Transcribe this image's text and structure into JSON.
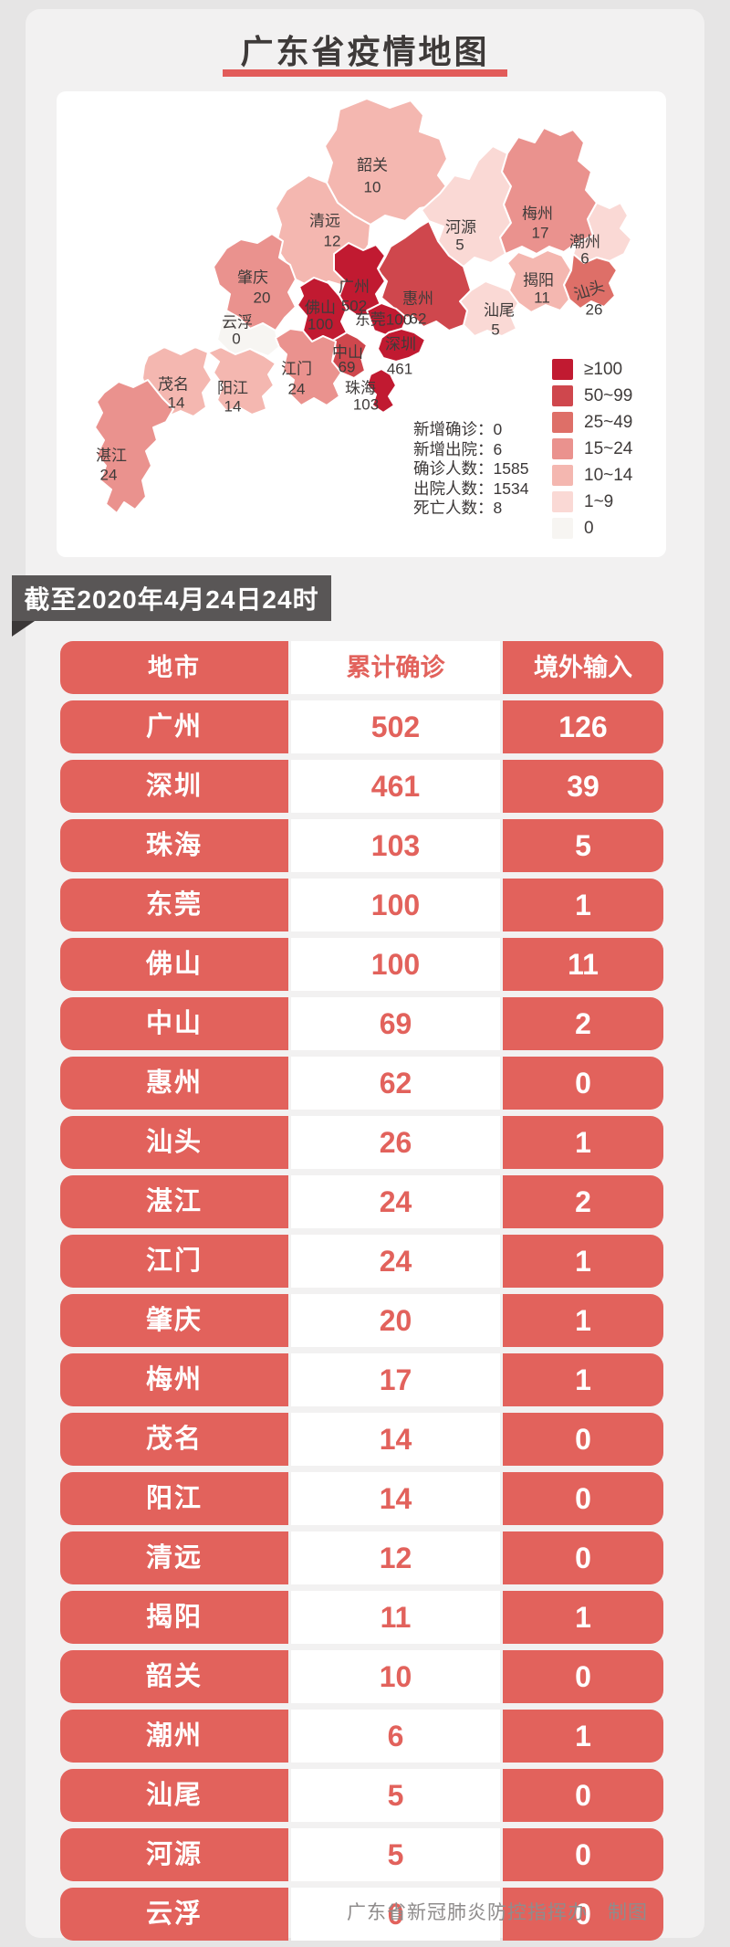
{
  "title": "广东省疫情地图",
  "as_of": "截至2020年4月24日24时",
  "footer": "广东省新冠肺炎防控指挥办　制图",
  "accent_color": "#e2625c",
  "map": {
    "legend": [
      {
        "label": "≥100",
        "color": "#c11a31"
      },
      {
        "label": "50~99",
        "color": "#cf474d"
      },
      {
        "label": "25~49",
        "color": "#de6f68"
      },
      {
        "label": "15~24",
        "color": "#ea928e"
      },
      {
        "label": "10~14",
        "color": "#f4b7b0"
      },
      {
        "label": "1~9",
        "color": "#fad9d5"
      },
      {
        "label": "0",
        "color": "#f7f5f2"
      }
    ],
    "stats": [
      {
        "label": "新增确诊",
        "value": "0"
      },
      {
        "label": "新增出院",
        "value": "6"
      },
      {
        "label": "确诊人数",
        "value": "1585"
      },
      {
        "label": "出院人数",
        "value": "1534"
      },
      {
        "label": "死亡人数",
        "value": "8"
      }
    ],
    "regions": [
      {
        "id": "shaoguan",
        "name": "韶关",
        "cases": 10
      },
      {
        "id": "qingyuan",
        "name": "清远",
        "cases": 12
      },
      {
        "id": "heyuan",
        "name": "河源",
        "cases": 5
      },
      {
        "id": "meizhou",
        "name": "梅州",
        "cases": 17
      },
      {
        "id": "chaozhou",
        "name": "潮州",
        "cases": 6
      },
      {
        "id": "jieyang",
        "name": "揭阳",
        "cases": 11
      },
      {
        "id": "shantou",
        "name": "汕头",
        "cases": 26
      },
      {
        "id": "shanwei",
        "name": "汕尾",
        "cases": 5
      },
      {
        "id": "huizhou",
        "name": "惠州",
        "cases": 62
      },
      {
        "id": "zhaoqing",
        "name": "肇庆",
        "cases": 20
      },
      {
        "id": "yunfu",
        "name": "云浮",
        "cases": 0
      },
      {
        "id": "guangzhou",
        "name": "广州",
        "cases": 502
      },
      {
        "id": "foshan",
        "name": "佛山",
        "cases": 100
      },
      {
        "id": "dongguan",
        "name": "东莞",
        "cases": 100
      },
      {
        "id": "shenzhen",
        "name": "深圳",
        "cases": 461
      },
      {
        "id": "zhongshan",
        "name": "中山",
        "cases": 69
      },
      {
        "id": "zhuhai",
        "name": "珠海",
        "cases": 103
      },
      {
        "id": "jiangmen",
        "name": "江门",
        "cases": 24
      },
      {
        "id": "maoming",
        "name": "茂名",
        "cases": 14
      },
      {
        "id": "yangjiang",
        "name": "阳江",
        "cases": 14
      },
      {
        "id": "zhanjiang",
        "name": "湛江",
        "cases": 24
      }
    ]
  },
  "table": {
    "headers": [
      "地市",
      "累计确诊",
      "境外输入"
    ],
    "rows": [
      [
        "广州",
        "502",
        "126"
      ],
      [
        "深圳",
        "461",
        "39"
      ],
      [
        "珠海",
        "103",
        "5"
      ],
      [
        "东莞",
        "100",
        "1"
      ],
      [
        "佛山",
        "100",
        "11"
      ],
      [
        "中山",
        "69",
        "2"
      ],
      [
        "惠州",
        "62",
        "0"
      ],
      [
        "汕头",
        "26",
        "1"
      ],
      [
        "湛江",
        "24",
        "2"
      ],
      [
        "江门",
        "24",
        "1"
      ],
      [
        "肇庆",
        "20",
        "1"
      ],
      [
        "梅州",
        "17",
        "1"
      ],
      [
        "茂名",
        "14",
        "0"
      ],
      [
        "阳江",
        "14",
        "0"
      ],
      [
        "清远",
        "12",
        "0"
      ],
      [
        "揭阳",
        "11",
        "1"
      ],
      [
        "韶关",
        "10",
        "0"
      ],
      [
        "潮州",
        "6",
        "1"
      ],
      [
        "汕尾",
        "5",
        "0"
      ],
      [
        "河源",
        "5",
        "0"
      ],
      [
        "云浮",
        "0",
        "0"
      ]
    ]
  },
  "chart_data": [
    {
      "type": "heatmap",
      "subtype": "choropleth-map",
      "title": "广东省疫情地图",
      "legend_bins": [
        "≥100",
        "50~99",
        "25~49",
        "15~24",
        "10~14",
        "1~9",
        "0"
      ],
      "legend_position": "right",
      "regions": [
        {
          "name": "广州",
          "cases": 502
        },
        {
          "name": "深圳",
          "cases": 461
        },
        {
          "name": "珠海",
          "cases": 103
        },
        {
          "name": "东莞",
          "cases": 100
        },
        {
          "name": "佛山",
          "cases": 100
        },
        {
          "name": "中山",
          "cases": 69
        },
        {
          "name": "惠州",
          "cases": 62
        },
        {
          "name": "汕头",
          "cases": 26
        },
        {
          "name": "湛江",
          "cases": 24
        },
        {
          "name": "江门",
          "cases": 24
        },
        {
          "name": "肇庆",
          "cases": 20
        },
        {
          "name": "梅州",
          "cases": 17
        },
        {
          "name": "茂名",
          "cases": 14
        },
        {
          "name": "阳江",
          "cases": 14
        },
        {
          "name": "清远",
          "cases": 12
        },
        {
          "name": "揭阳",
          "cases": 11
        },
        {
          "name": "韶关",
          "cases": 10
        },
        {
          "name": "潮州",
          "cases": 6
        },
        {
          "name": "汕尾",
          "cases": 5
        },
        {
          "name": "河源",
          "cases": 5
        },
        {
          "name": "云浮",
          "cases": 0
        }
      ],
      "summary_stats": {
        "新增确诊": 0,
        "新增出院": 6,
        "确诊人数": 1585,
        "出院人数": 1534,
        "死亡人数": 8
      },
      "as_of": "截至2020年4月24日24时"
    },
    {
      "type": "table",
      "columns": [
        "地市",
        "累计确诊",
        "境外输入"
      ],
      "rows": [
        [
          "广州",
          502,
          126
        ],
        [
          "深圳",
          461,
          39
        ],
        [
          "珠海",
          103,
          5
        ],
        [
          "东莞",
          100,
          1
        ],
        [
          "佛山",
          100,
          11
        ],
        [
          "中山",
          69,
          2
        ],
        [
          "惠州",
          62,
          0
        ],
        [
          "汕头",
          26,
          1
        ],
        [
          "湛江",
          24,
          2
        ],
        [
          "江门",
          24,
          1
        ],
        [
          "肇庆",
          20,
          1
        ],
        [
          "梅州",
          17,
          1
        ],
        [
          "茂名",
          14,
          0
        ],
        [
          "阳江",
          14,
          0
        ],
        [
          "清远",
          12,
          0
        ],
        [
          "揭阳",
          11,
          1
        ],
        [
          "韶关",
          10,
          0
        ],
        [
          "潮州",
          6,
          1
        ],
        [
          "汕尾",
          5,
          0
        ],
        [
          "河源",
          5,
          0
        ],
        [
          "云浮",
          0,
          0
        ]
      ]
    }
  ]
}
